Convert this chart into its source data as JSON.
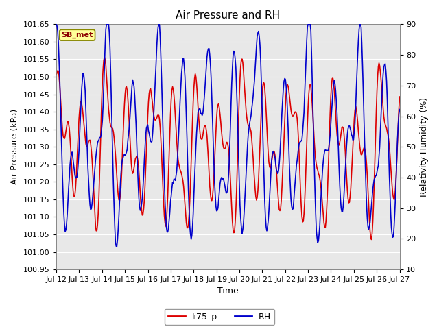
{
  "title": "Air Pressure and RH",
  "xlabel": "Time",
  "ylabel_left": "Air Pressure (kPa)",
  "ylabel_right": "Relativity Humidity (%)",
  "annotation_text": "SB_met",
  "legend_labels": [
    "li75_p",
    "RH"
  ],
  "legend_colors": [
    "#dd0000",
    "#0000cc"
  ],
  "left_ylim": [
    100.95,
    101.65
  ],
  "right_ylim": [
    10,
    90
  ],
  "left_yticks": [
    100.95,
    101.0,
    101.05,
    101.1,
    101.15,
    101.2,
    101.25,
    101.3,
    101.35,
    101.4,
    101.45,
    101.5,
    101.55,
    101.6,
    101.65
  ],
  "right_yticks": [
    10,
    20,
    30,
    40,
    50,
    60,
    70,
    80,
    90
  ],
  "xtick_labels": [
    "Jul 12",
    "Jul 13",
    "Jul 14",
    "Jul 15",
    "Jul 16",
    "Jul 17",
    "Jul 18",
    "Jul 19",
    "Jul 20",
    "Jul 21",
    "Jul 22",
    "Jul 23",
    "Jul 24",
    "Jul 25",
    "Jul 26",
    "Jul 27"
  ],
  "fig_bg_color": "#ffffff",
  "plot_bg_color": "#e8e8e8",
  "line_color_pressure": "#dd0000",
  "line_color_rh": "#0000cc",
  "linewidth": 1.2,
  "num_points": 500,
  "annotation_bg": "#ffff99",
  "annotation_border": "#888800",
  "title_fontsize": 11,
  "axis_label_fontsize": 9,
  "tick_fontsize": 8
}
